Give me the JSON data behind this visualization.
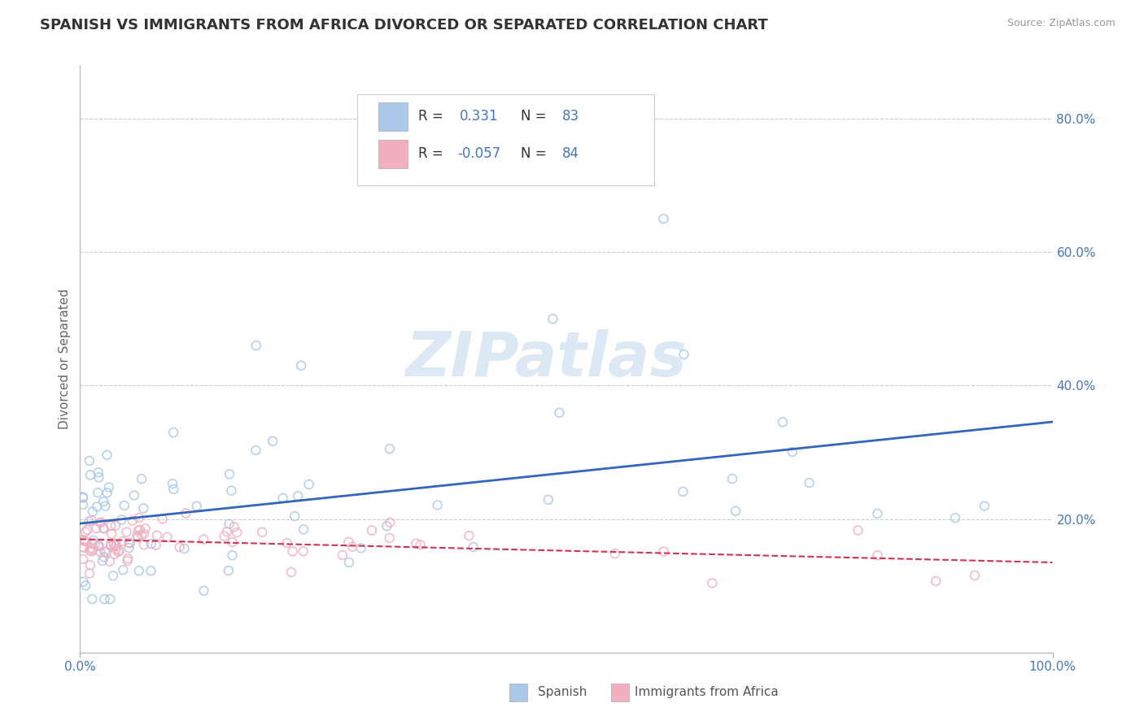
{
  "title": "SPANISH VS IMMIGRANTS FROM AFRICA DIVORCED OR SEPARATED CORRELATION CHART",
  "source_text": "Source: ZipAtlas.com",
  "ylabel": "Divorced or Separated",
  "xlim": [
    0.0,
    1.0
  ],
  "ylim": [
    0.0,
    0.88
  ],
  "x_tick_labels": [
    "0.0%",
    "100.0%"
  ],
  "y_tick_labels": [
    "20.0%",
    "40.0%",
    "60.0%",
    "80.0%"
  ],
  "y_tick_values": [
    0.2,
    0.4,
    0.6,
    0.8
  ],
  "grid_color": "#cccccc",
  "background_color": "#ffffff",
  "title_color": "#333333",
  "title_fontsize": 13,
  "legend_R1": "0.331",
  "legend_N1": "83",
  "legend_R2": "-0.057",
  "legend_N2": "84",
  "series1_color": "#aac8e8",
  "series2_color": "#f0b0c0",
  "trend1_color": "#3366bb",
  "trend2_color": "#cc3355",
  "watermark": "ZIPatlas",
  "watermark_color": "#dde8f5",
  "axis_label_color": "#4477bb",
  "legend_label1": "Spanish",
  "legend_label2": "Immigrants from Africa",
  "legend_text_color": "#333333",
  "legend_value_color": "#4477bb"
}
